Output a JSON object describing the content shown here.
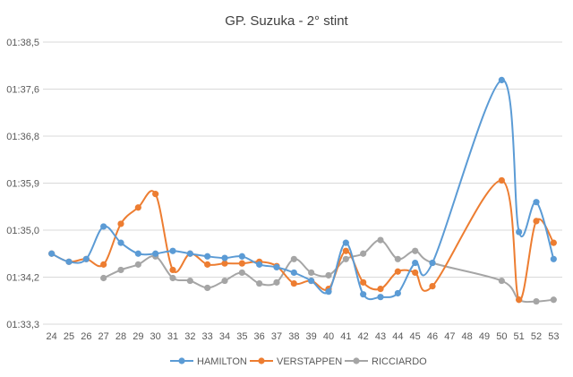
{
  "chart_data": {
    "type": "line",
    "title": "GP. Suzuka - 2° stint",
    "xlabel": "",
    "ylabel": "",
    "x": [
      24,
      25,
      26,
      27,
      28,
      29,
      30,
      31,
      32,
      33,
      34,
      35,
      36,
      37,
      38,
      39,
      40,
      41,
      42,
      43,
      44,
      45,
      46,
      47,
      48,
      49,
      50,
      51,
      52,
      53
    ],
    "y_ticks": [
      "01:33,3",
      "01:34,2",
      "01:35,0",
      "01:35,9",
      "01:36,8",
      "01:37,6",
      "01:38,5"
    ],
    "ylim_seconds": [
      93.3,
      98.5
    ],
    "grid": true,
    "legend_position": "bottom",
    "series": [
      {
        "name": "HAMILTON",
        "color": "#5b9bd5",
        "points": [
          [
            24,
            94.6
          ],
          [
            25,
            94.45
          ],
          [
            26,
            94.5
          ],
          [
            27,
            95.1
          ],
          [
            28,
            94.8
          ],
          [
            29,
            94.6
          ],
          [
            30,
            94.6
          ],
          [
            31,
            94.65
          ],
          [
            32,
            94.6
          ],
          [
            33,
            94.55
          ],
          [
            34,
            94.52
          ],
          [
            35,
            94.55
          ],
          [
            36,
            94.4
          ],
          [
            37,
            94.35
          ],
          [
            38,
            94.25
          ],
          [
            39,
            94.1
          ],
          [
            40,
            93.9
          ],
          [
            41,
            94.8
          ],
          [
            42,
            93.85
          ],
          [
            43,
            93.8
          ],
          [
            44,
            93.87
          ],
          [
            45,
            94.43
          ],
          [
            46,
            94.43
          ],
          [
            50,
            97.8
          ],
          [
            51,
            95.0
          ],
          [
            52,
            95.55
          ],
          [
            53,
            94.5
          ]
        ]
      },
      {
        "name": "VERSTAPPEN",
        "color": "#ed7d31",
        "points": [
          [
            24,
            94.6
          ],
          [
            25,
            94.45
          ],
          [
            26,
            94.5
          ],
          [
            27,
            94.4
          ],
          [
            28,
            95.15
          ],
          [
            29,
            95.45
          ],
          [
            30,
            95.7
          ],
          [
            31,
            94.3
          ],
          [
            32,
            94.6
          ],
          [
            33,
            94.4
          ],
          [
            34,
            94.42
          ],
          [
            35,
            94.42
          ],
          [
            36,
            94.45
          ],
          [
            37,
            94.37
          ],
          [
            38,
            94.05
          ],
          [
            39,
            94.1
          ],
          [
            40,
            93.95
          ],
          [
            41,
            94.65
          ],
          [
            42,
            94.07
          ],
          [
            43,
            93.95
          ],
          [
            44,
            94.27
          ],
          [
            45,
            94.25
          ],
          [
            46,
            94.0
          ],
          [
            50,
            95.95
          ],
          [
            51,
            93.75
          ],
          [
            52,
            95.2
          ],
          [
            53,
            94.8
          ]
        ]
      },
      {
        "name": "RICCIARDO",
        "color": "#a5a5a5",
        "points": [
          [
            27,
            94.15
          ],
          [
            28,
            94.3
          ],
          [
            29,
            94.4
          ],
          [
            30,
            94.55
          ],
          [
            31,
            94.15
          ],
          [
            32,
            94.1
          ],
          [
            33,
            93.97
          ],
          [
            34,
            94.1
          ],
          [
            35,
            94.25
          ],
          [
            36,
            94.05
          ],
          [
            37,
            94.07
          ],
          [
            38,
            94.5
          ],
          [
            39,
            94.25
          ],
          [
            40,
            94.2
          ],
          [
            41,
            94.5
          ],
          [
            42,
            94.6
          ],
          [
            43,
            94.85
          ],
          [
            44,
            94.5
          ],
          [
            45,
            94.65
          ],
          [
            46,
            94.43
          ],
          [
            50,
            94.1
          ],
          [
            51,
            93.75
          ],
          [
            52,
            93.72
          ],
          [
            53,
            93.75
          ]
        ]
      }
    ]
  }
}
